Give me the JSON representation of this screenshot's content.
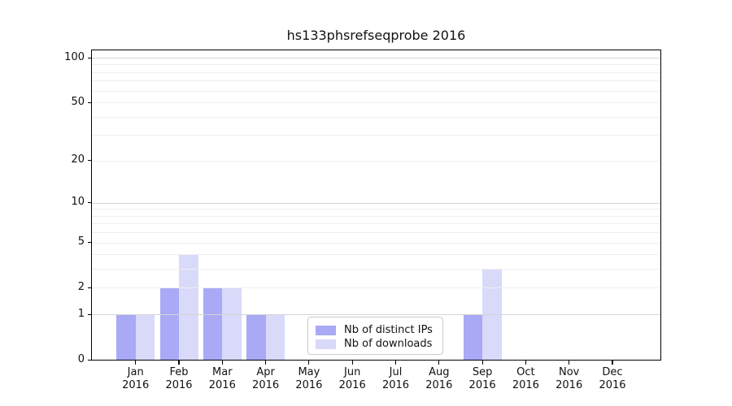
{
  "chart_data": {
    "type": "bar",
    "title": "hs133phsrefseqprobe 2016",
    "categories": [
      "Jan",
      "Feb",
      "Mar",
      "Apr",
      "May",
      "Jun",
      "Jul",
      "Aug",
      "Sep",
      "Oct",
      "Nov",
      "Dec"
    ],
    "category_year": "2016",
    "series": [
      {
        "name": "Nb of distinct IPs",
        "color": "#a9a9f6",
        "values": [
          1,
          2,
          2,
          1,
          0,
          0,
          0,
          0,
          1,
          0,
          0,
          0
        ]
      },
      {
        "name": "Nb of downloads",
        "color": "#d9d9fa",
        "values": [
          1,
          4,
          2,
          1,
          0,
          0,
          0,
          0,
          3,
          0,
          0,
          0
        ]
      }
    ],
    "yscale": "log1p",
    "ylim": [
      0,
      112
    ],
    "yticks": [
      0,
      1,
      2,
      5,
      10,
      20,
      50,
      100
    ],
    "gridlines": {
      "major": [
        1,
        10,
        100
      ],
      "minor": [
        2,
        3,
        4,
        5,
        6,
        7,
        8,
        9,
        20,
        30,
        40,
        50,
        60,
        70,
        80,
        90
      ]
    },
    "grid_color_major": "#d4d4d4",
    "grid_color_minor": "#efefef",
    "legend_position": "lower center",
    "xlabel": "",
    "ylabel": ""
  }
}
